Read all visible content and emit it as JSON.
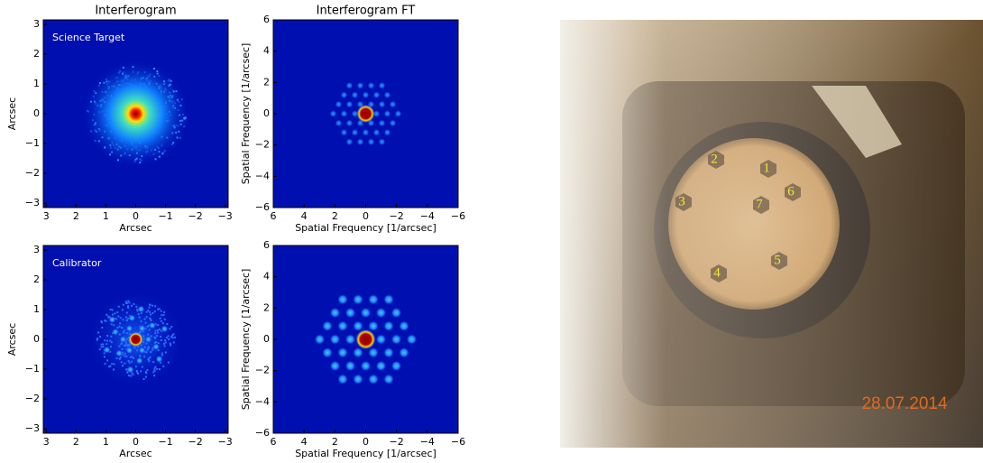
{
  "figure": {
    "panels": [
      {
        "title": "Interferogram",
        "annotation": "Science Target",
        "xlabel": "Arcsec",
        "ylabel": "Arcsec",
        "xlim": [
          3.1,
          -3.1
        ],
        "ylim": [
          -3.15,
          3.15
        ],
        "xticks": [
          3,
          2,
          1,
          0,
          {
            "value": -1,
            "label": "−1"
          },
          {
            "value": -2,
            "label": "−2"
          },
          {
            "value": -3,
            "label": "−3"
          }
        ],
        "yticks": [
          {
            "value": -3,
            "label": "−3"
          },
          {
            "value": -2,
            "label": "−2"
          },
          {
            "value": -1,
            "label": "−1"
          },
          0,
          1,
          2,
          3
        ]
      },
      {
        "title": "Interferogram FT",
        "xlabel": "Spatial Frequency [1/arcsec]",
        "ylabel": "Spatial Frequency [1/arcsec]",
        "xlim": [
          6,
          -6
        ],
        "ylim": [
          -6,
          6
        ],
        "xticks": [
          6,
          4,
          2,
          0,
          {
            "value": -2,
            "label": "−2"
          },
          {
            "value": -4,
            "label": "−4"
          },
          {
            "value": -6,
            "label": "−6"
          }
        ],
        "yticks": [
          {
            "value": -6,
            "label": "−6"
          },
          {
            "value": -4,
            "label": "−4"
          },
          {
            "value": -2,
            "label": "−2"
          },
          0,
          2,
          4,
          6
        ]
      },
      {
        "annotation": "Calibrator",
        "xlabel": "Arcsec",
        "ylabel": "Arcsec",
        "xlim": [
          3.1,
          -3.1
        ],
        "ylim": [
          -3.15,
          3.15
        ],
        "xticks": [
          3,
          2,
          1,
          0,
          {
            "value": -1,
            "label": "−1"
          },
          {
            "value": -2,
            "label": "−2"
          },
          {
            "value": -3,
            "label": "−3"
          }
        ],
        "yticks": [
          {
            "value": -3,
            "label": "−3"
          },
          {
            "value": -2,
            "label": "−2"
          },
          {
            "value": -1,
            "label": "−1"
          },
          0,
          1,
          2,
          3
        ]
      },
      {
        "xlabel": "Spatial Frequency [1/arcsec]",
        "ylabel": "Spatial Frequency [1/arcsec]",
        "xlim": [
          6,
          -6
        ],
        "ylim": [
          -6,
          6
        ],
        "xticks": [
          6,
          4,
          2,
          0,
          {
            "value": -2,
            "label": "−2"
          },
          {
            "value": -4,
            "label": "−4"
          },
          {
            "value": -6,
            "label": "−6"
          }
        ],
        "yticks": [
          {
            "value": -6,
            "label": "−6"
          },
          {
            "value": -4,
            "label": "−4"
          },
          {
            "value": -2,
            "label": "−2"
          },
          0,
          2,
          4,
          6
        ]
      }
    ],
    "photo": {
      "labels": [
        "1",
        "2",
        "3",
        "4",
        "5",
        "6",
        "7"
      ],
      "date": "28.07.2014"
    }
  }
}
